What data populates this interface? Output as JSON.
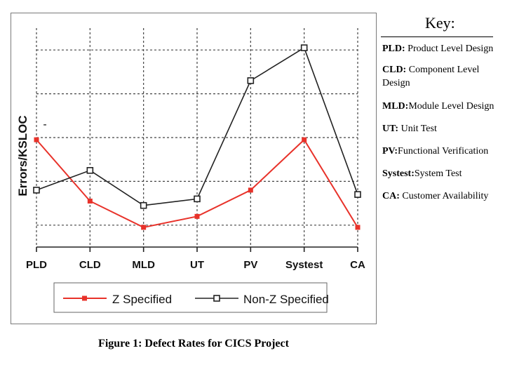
{
  "chart_data": {
    "type": "line",
    "ylabel": "Errors/KSLOC",
    "xlabel": "",
    "title": "",
    "categories": [
      "PLD",
      "CLD",
      "MLD",
      "UT",
      "PV",
      "Systest",
      "CA"
    ],
    "ylim": [
      0,
      10
    ],
    "grid": true,
    "legend": "bottom",
    "series": [
      {
        "name": "Z Specified",
        "color": "#e8322a",
        "marker": "filled-square",
        "values": [
          4.9,
          2.1,
          0.9,
          1.4,
          2.6,
          4.9,
          0.9
        ]
      },
      {
        "name": "Non-Z Specified",
        "color": "#222222",
        "marker": "open-square",
        "values": [
          2.6,
          3.5,
          1.9,
          2.2,
          7.6,
          9.1,
          2.4
        ]
      }
    ],
    "stray_mark": "-"
  },
  "key": {
    "title": "Key:",
    "items": [
      {
        "abbr": "PLD:",
        "desc": "Product Level Design"
      },
      {
        "abbr": "CLD:",
        "desc": "Component Level Design"
      },
      {
        "abbr": "MLD:",
        "desc": "Module Level Design"
      },
      {
        "abbr": "UT:",
        "desc": "Unit Test"
      },
      {
        "abbr": "PV:",
        "desc": "Functional Verification"
      },
      {
        "abbr": "Systest:",
        "desc": "System Test"
      },
      {
        "abbr": "CA:",
        "desc": "Customer Availability"
      }
    ]
  },
  "caption": {
    "label": "Figure 1:",
    "text": "Defect Rates for CICS Project"
  }
}
